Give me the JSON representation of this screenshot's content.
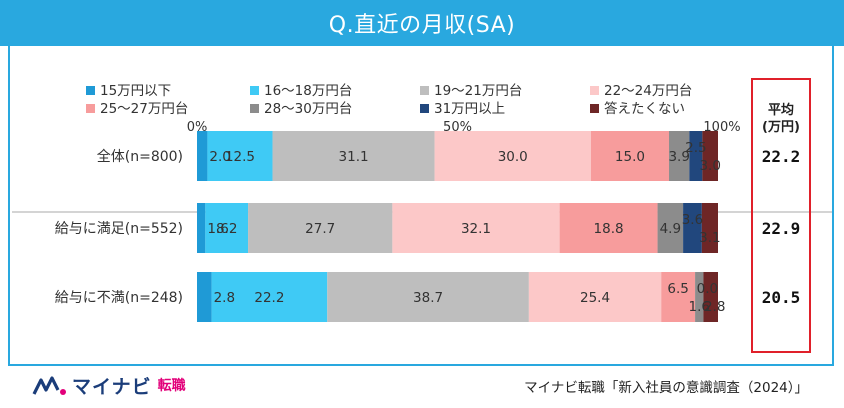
{
  "header": {
    "title": "Q.直近の月収(SA)"
  },
  "footer": {
    "brand": "マイナビ",
    "brand_suffix": "転職",
    "source": "マイナビ転職「新入社員の意識調査（2024）」"
  },
  "colors": {
    "header_bg": "#29a8df",
    "avg_box_border": "#e0202a"
  },
  "chart_data": {
    "type": "bar",
    "orientation": "horizontal",
    "stacked": true,
    "normalized": true,
    "xlim": [
      0,
      100
    ],
    "x_ticks": [
      "0%",
      "50%",
      "100%"
    ],
    "categories": [
      "全体(n=800)",
      "給与に満足(n=552)",
      "給与に不満(n=248)"
    ],
    "series": [
      {
        "name": "15万円以下",
        "color": "#1f9ad6",
        "values": [
          2.0,
          1.6,
          2.8
        ],
        "labels": [
          "2.0",
          "1.6",
          "2.8"
        ]
      },
      {
        "name": "16～18万円台",
        "color": "#3fcaf5",
        "values": [
          12.5,
          8.2,
          22.2
        ],
        "labels": [
          "12.5",
          "8.2",
          "22.2"
        ]
      },
      {
        "name": "19～21万円台",
        "color": "#bebebe",
        "values": [
          31.1,
          27.7,
          38.7
        ],
        "labels": [
          "31.1",
          "27.7",
          "38.7"
        ]
      },
      {
        "name": "22～24万円台",
        "color": "#fcc8c8",
        "values": [
          30.0,
          32.1,
          25.4
        ],
        "labels": [
          "30.0",
          "32.1",
          "25.4"
        ]
      },
      {
        "name": "25～27万円台",
        "color": "#f79c9c",
        "values": [
          15.0,
          18.8,
          6.5
        ],
        "labels": [
          "15.0",
          "18.8",
          "6.5"
        ]
      },
      {
        "name": "28～30万円台",
        "color": "#8c8c8c",
        "values": [
          3.9,
          4.9,
          1.6
        ],
        "labels": [
          "3.9",
          "4.9",
          "1.6"
        ]
      },
      {
        "name": "31万円以上",
        "color": "#21477d",
        "values": [
          2.5,
          3.6,
          0.0
        ],
        "labels": [
          "2.5",
          "3.6",
          "0.0"
        ]
      },
      {
        "name": "答えたくない",
        "color": "#6e2626",
        "values": [
          3.0,
          3.1,
          2.8
        ],
        "labels": [
          "3.0",
          "3.1",
          "2.8"
        ]
      }
    ],
    "average": {
      "header": [
        "平均",
        "(万円)"
      ],
      "values": [
        "22.2",
        "22.9",
        "20.5"
      ]
    },
    "legend_position": "top"
  }
}
